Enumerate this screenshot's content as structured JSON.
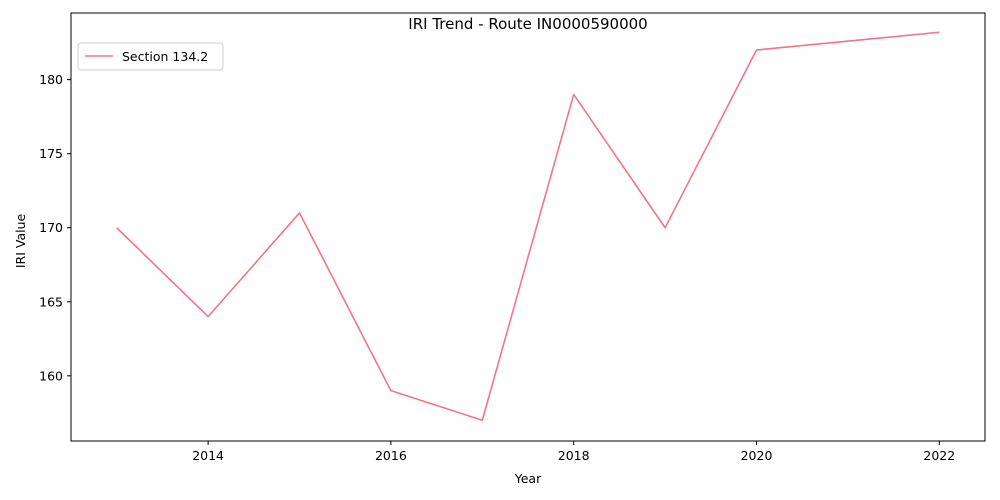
{
  "chart_data": {
    "type": "line",
    "title": "IRI Trend - Route IN0000590000",
    "xlabel": "Year",
    "ylabel": "IRI Value",
    "xlim": [
      2012.5,
      2022.5
    ],
    "ylim": [
      155.6,
      184.5
    ],
    "x_ticks": [
      2014,
      2016,
      2018,
      2020,
      2022
    ],
    "y_ticks": [
      160,
      165,
      170,
      175,
      180
    ],
    "grid": false,
    "legend_position": "top-left",
    "series": [
      {
        "name": "Section 134.2",
        "color": "#f0758a",
        "x": [
          2013,
          2014,
          2015,
          2016,
          2017,
          2018,
          2019,
          2020,
          2022
        ],
        "y": [
          170,
          164,
          171,
          159,
          157,
          179,
          170,
          182,
          183.2
        ]
      }
    ]
  }
}
